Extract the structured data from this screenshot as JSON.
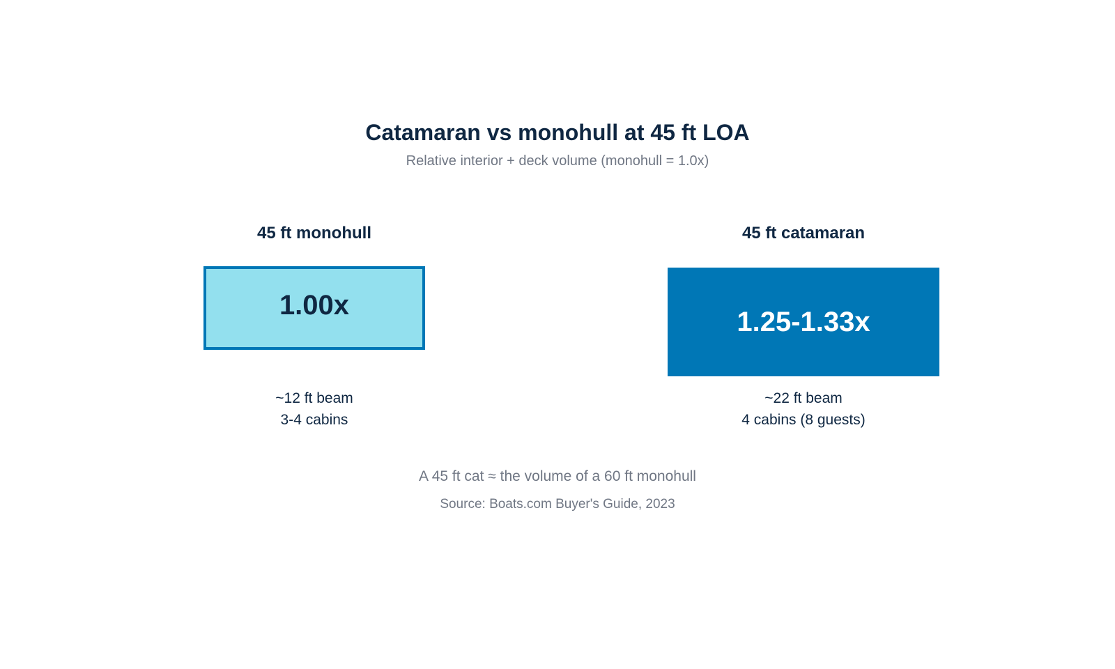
{
  "title": "Catamaran vs monohull at 45 ft LOA",
  "subtitle": "Relative interior + deck volume (monohull = 1.0x)",
  "colors": {
    "title": "#0f2742",
    "muted": "#707784",
    "monohull_fill": "#93e0ee",
    "monohull_border": "#0077b6",
    "catamaran_fill": "#0077b6",
    "catamaran_text": "#ffffff"
  },
  "monohull": {
    "label": "45 ft monohull",
    "value_text": "1.00x",
    "relative_volume": 1.0,
    "beam": "~12 ft beam",
    "cabins": "3-4 cabins"
  },
  "catamaran": {
    "label": "45 ft catamaran",
    "value_text": "1.25-1.33x",
    "relative_volume_range": [
      1.25,
      1.33
    ],
    "beam": "~22 ft beam",
    "cabins": "4 cabins (8 guests)"
  },
  "footnote": "A 45 ft cat ≈ the volume of a 60 ft monohull",
  "source": "Source: Boats.com Buyer's Guide, 2023"
}
